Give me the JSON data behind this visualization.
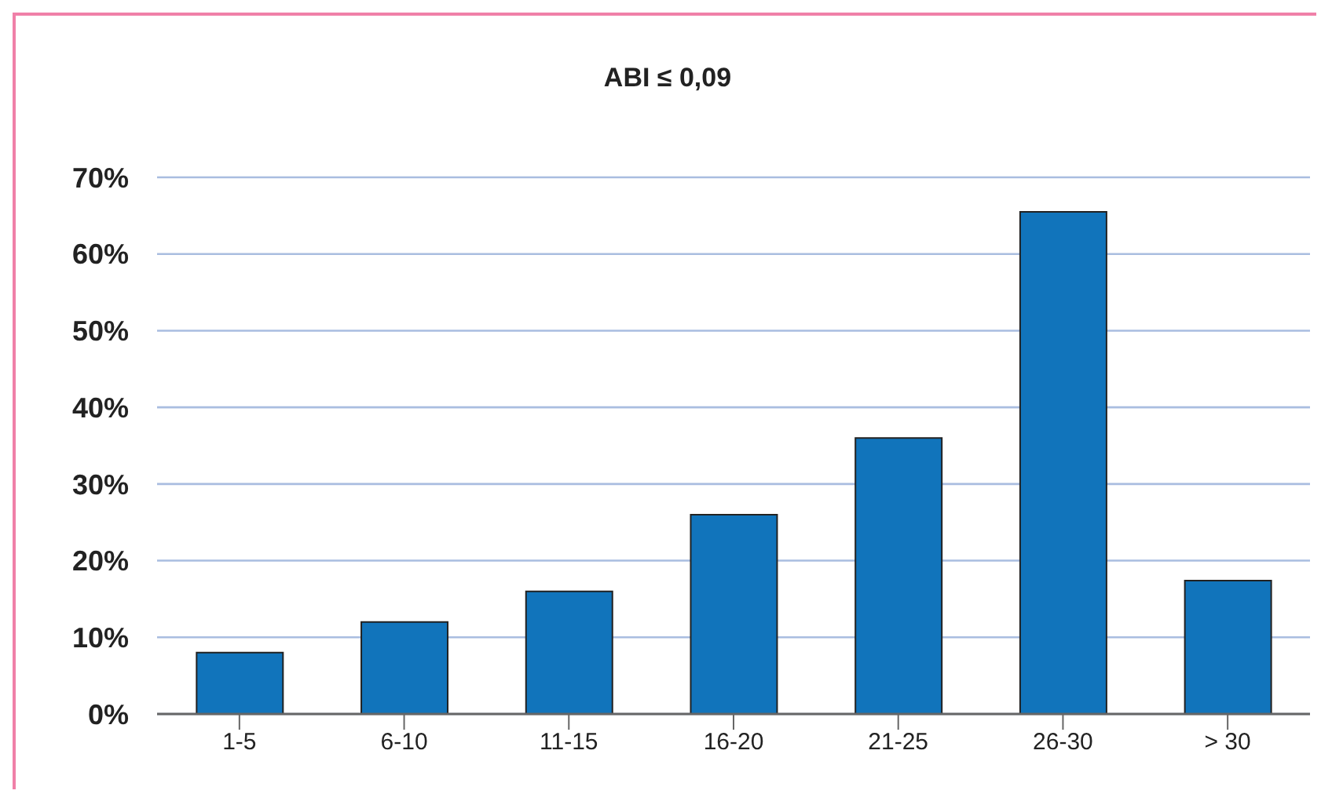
{
  "chart_data": {
    "type": "bar",
    "title": "ABI ≤ 0,09",
    "categories": [
      "1-5",
      "6-10",
      "11-15",
      "16-20",
      "21-25",
      "26-30",
      "> 30"
    ],
    "values": [
      8,
      12,
      16,
      26,
      36,
      65.5,
      17.4
    ],
    "color": "#1174bb",
    "ylim": [
      0,
      70
    ],
    "yticks": [
      {
        "value": 0,
        "label": "0%"
      },
      {
        "value": 10,
        "label": "10%"
      },
      {
        "value": 20,
        "label": "20%"
      },
      {
        "value": 30,
        "label": "30%"
      },
      {
        "value": 40,
        "label": "40%"
      },
      {
        "value": 50,
        "label": "50%"
      },
      {
        "value": 60,
        "label": "60%"
      },
      {
        "value": 70,
        "label": "70%"
      }
    ],
    "grid": "y"
  }
}
